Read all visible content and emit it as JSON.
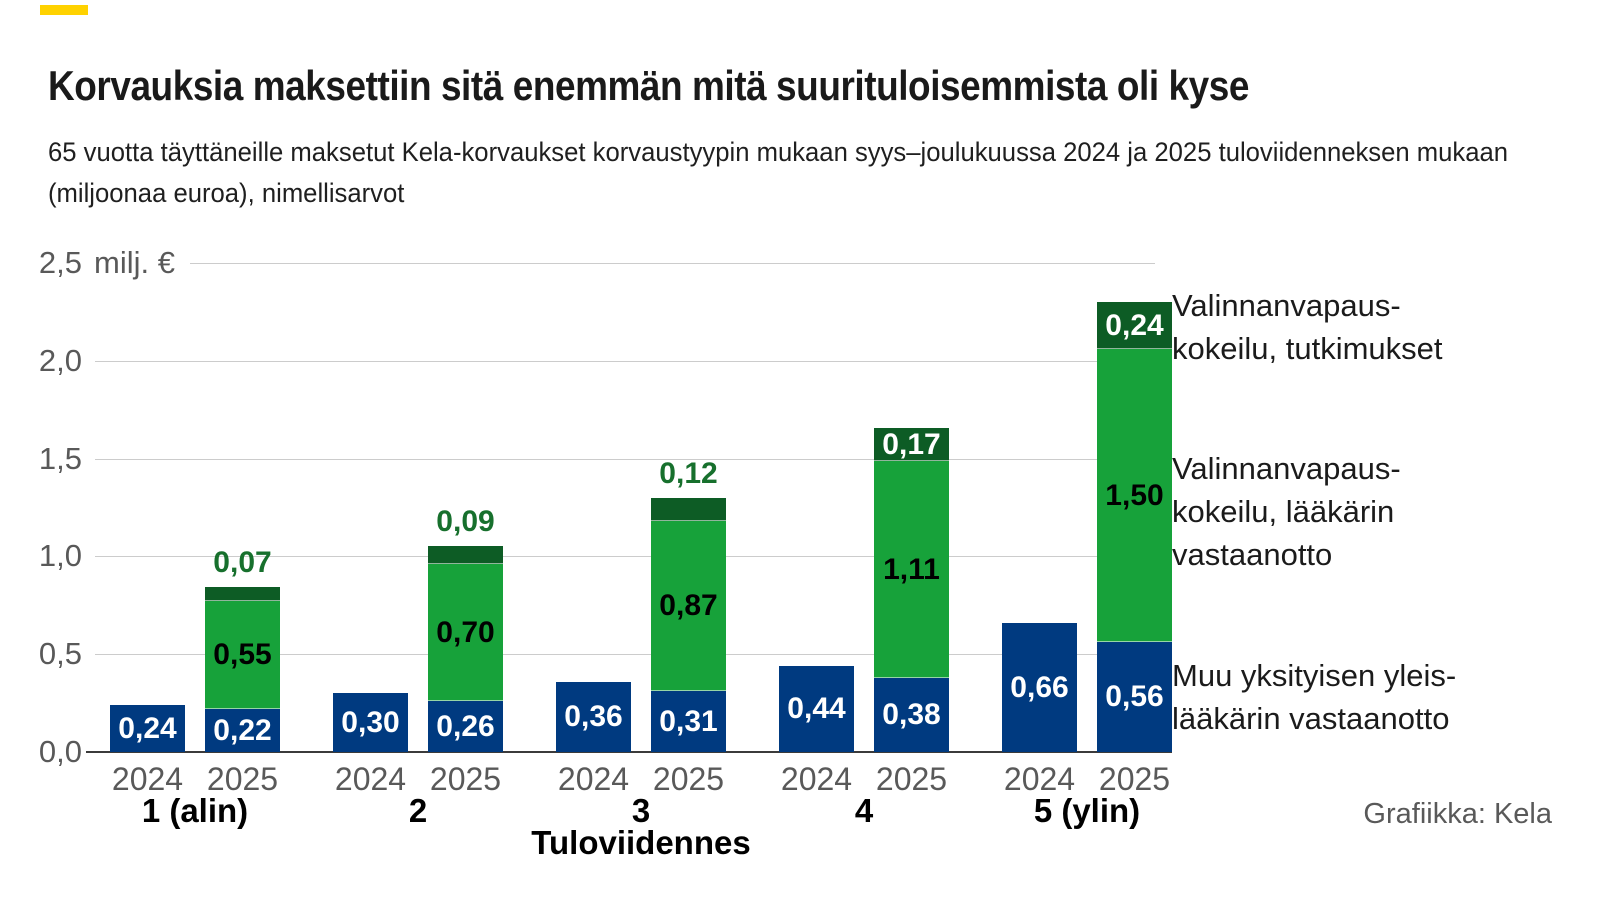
{
  "accent": {
    "dash_color": "#ffd200"
  },
  "header": {
    "title": "Korvauksia maksettiin sitä enemmän mitä suurituloisemmista oli kyse",
    "subtitle_line1": "65 vuotta täyttäneille maksetut Kela-korvaukset korvaustyypin mukaan syys–joulukuussa 2024 ja 2025 tuloviidenneksen mukaan",
    "subtitle_line2": "(miljoonaa euroa), nimellisarvot"
  },
  "chart_data": {
    "type": "bar",
    "stacked": true,
    "title": "Korvauksia maksettiin sitä enemmän mitä suurituloisemmista oli kyse",
    "unit_label": "milj. €",
    "ylim": [
      0,
      2.5
    ],
    "y_ticks": [
      "0,0",
      "0,5",
      "1,0",
      "1,5",
      "2,0",
      "2,5"
    ],
    "grid": true,
    "xlabel": "Tuloviidennes",
    "colors": {
      "blue": "#003a80",
      "green": "#17a23a",
      "dark_green": "#0d5c25",
      "green_outside_label": "#17702d",
      "gridline": "#cccccc",
      "axis": "#3b3b3b",
      "gray_text": "#595959"
    },
    "series": [
      {
        "id": "muu",
        "name": "Muu yksityisen yleislääkärin vastaanotto",
        "color": "#003a80",
        "label_color": "#ffffff"
      },
      {
        "id": "vvk_laakari",
        "name": "Valinnanvapauskokeilu, lääkärin vastaanotto",
        "color": "#17a23a",
        "label_color": "#000000"
      },
      {
        "id": "vvk_tutkimukset",
        "name": "Valinnanvapauskokeilu, tutkimukset",
        "color": "#0d5c25",
        "label_color": "#ffffff"
      }
    ],
    "groups": [
      {
        "label": "1 (alin)",
        "bars": [
          {
            "year": "2024",
            "segments": [
              {
                "series": "muu",
                "value": 0.24,
                "label": "0,24"
              }
            ]
          },
          {
            "year": "2025",
            "segments": [
              {
                "series": "muu",
                "value": 0.22,
                "label": "0,22"
              },
              {
                "series": "vvk_laakari",
                "value": 0.55,
                "label": "0,55"
              },
              {
                "series": "vvk_tutkimukset",
                "value": 0.07,
                "label": "0,07",
                "label_position": "above"
              }
            ]
          }
        ]
      },
      {
        "label": "2",
        "bars": [
          {
            "year": "2024",
            "segments": [
              {
                "series": "muu",
                "value": 0.3,
                "label": "0,30"
              }
            ]
          },
          {
            "year": "2025",
            "segments": [
              {
                "series": "muu",
                "value": 0.26,
                "label": "0,26"
              },
              {
                "series": "vvk_laakari",
                "value": 0.7,
                "label": "0,70"
              },
              {
                "series": "vvk_tutkimukset",
                "value": 0.09,
                "label": "0,09",
                "label_position": "above"
              }
            ]
          }
        ]
      },
      {
        "label": "3",
        "bars": [
          {
            "year": "2024",
            "segments": [
              {
                "series": "muu",
                "value": 0.36,
                "label": "0,36"
              }
            ]
          },
          {
            "year": "2025",
            "segments": [
              {
                "series": "muu",
                "value": 0.31,
                "label": "0,31"
              },
              {
                "series": "vvk_laakari",
                "value": 0.87,
                "label": "0,87"
              },
              {
                "series": "vvk_tutkimukset",
                "value": 0.12,
                "label": "0,12",
                "label_position": "above"
              }
            ]
          }
        ]
      },
      {
        "label": "4",
        "bars": [
          {
            "year": "2024",
            "segments": [
              {
                "series": "muu",
                "value": 0.44,
                "label": "0,44"
              }
            ]
          },
          {
            "year": "2025",
            "segments": [
              {
                "series": "muu",
                "value": 0.38,
                "label": "0,38"
              },
              {
                "series": "vvk_laakari",
                "value": 1.11,
                "label": "1,11"
              },
              {
                "series": "vvk_tutkimukset",
                "value": 0.17,
                "label": "0,17",
                "label_position": "inside"
              }
            ]
          }
        ]
      },
      {
        "label": "5 (ylin)",
        "bars": [
          {
            "year": "2024",
            "segments": [
              {
                "series": "muu",
                "value": 0.66,
                "label": "0,66"
              }
            ]
          },
          {
            "year": "2025",
            "segments": [
              {
                "series": "muu",
                "value": 0.56,
                "label": "0,56"
              },
              {
                "series": "vvk_laakari",
                "value": 1.5,
                "label": "1,50"
              },
              {
                "series": "vvk_tutkimukset",
                "value": 0.24,
                "label": "0,24",
                "label_position": "inside"
              }
            ]
          }
        ]
      }
    ],
    "legend_position": "right",
    "legend": [
      {
        "series": "vvk_tutkimukset",
        "lines": [
          "Valinnanvapaus-",
          "kokeilu, tutkimukset"
        ]
      },
      {
        "series": "vvk_laakari",
        "lines": [
          "Valinnanvapaus-",
          "kokeilu, lääkärin",
          "vastaanotto"
        ]
      },
      {
        "series": "muu",
        "lines": [
          "Muu yksityisen yleis-",
          "lääkärin vastaanotto"
        ]
      }
    ]
  },
  "footer": {
    "credit": "Grafiikka: Kela"
  }
}
